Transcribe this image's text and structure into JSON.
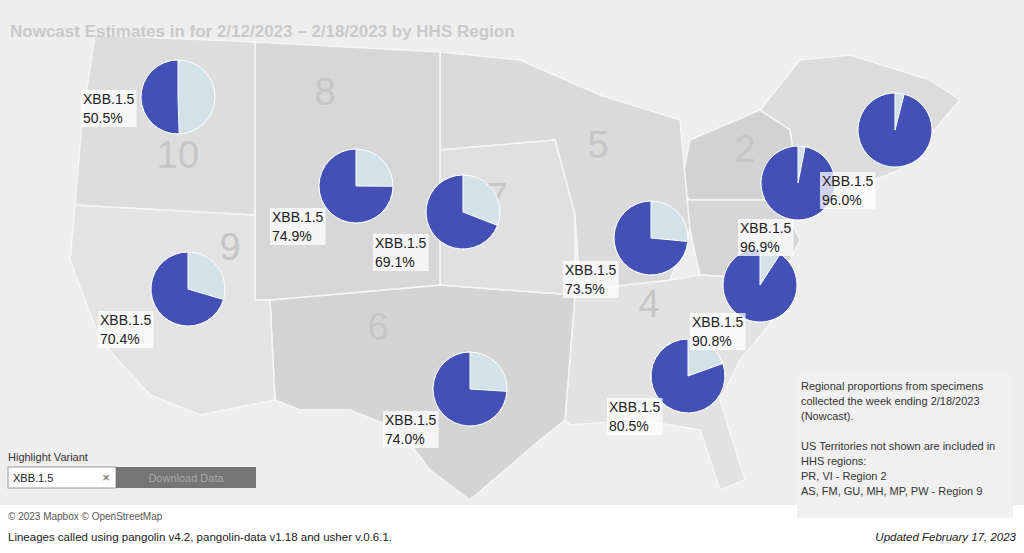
{
  "chart_data": {
    "type": "pie",
    "title": "Nowcast Estimates in for 2/12/2023 – 2/18/2023 by HHS Region",
    "categories": [
      null,
      "2",
      null,
      "4",
      "5",
      "6",
      "7",
      "8",
      "9",
      "10"
    ],
    "ylim": [
      0,
      100
    ],
    "data_labels": true,
    "series": [
      {
        "name": "XBB.1.5",
        "color": "#4351b6",
        "values": [
          96.0,
          96.9,
          90.8,
          80.5,
          73.5,
          74.0,
          69.1,
          74.9,
          70.4,
          50.5
        ],
        "value_labels": [
          "96.0%",
          "96.9%",
          "90.8%",
          "80.5%",
          "73.5%",
          "74.0%",
          "69.1%",
          "74.9%",
          "70.4%",
          "50.5%"
        ]
      }
    ],
    "annotations": {
      "highlight_label": "Highlight Variant",
      "highlight_value": "XBB.1.5",
      "clear": "×",
      "button": "Download Data",
      "credits": "© 2023 Mapbox © OpenStreetMap",
      "note": [
        [
          "Regional proportions from specimens",
          "collected the week ending 2/18/2023",
          "(Nowcast)."
        ],
        [
          "US Territories not shown are included in",
          "HHS regions:",
          "PR, VI - Region 2",
          "AS, FM, GU, MH, MP, PW - Region 9"
        ]
      ],
      "footer": "Lineages called using pangolin v4.2, pangolin-data v1.18 and usher v.0.6.1.",
      "updated": "Updated February 17, 2023"
    }
  }
}
